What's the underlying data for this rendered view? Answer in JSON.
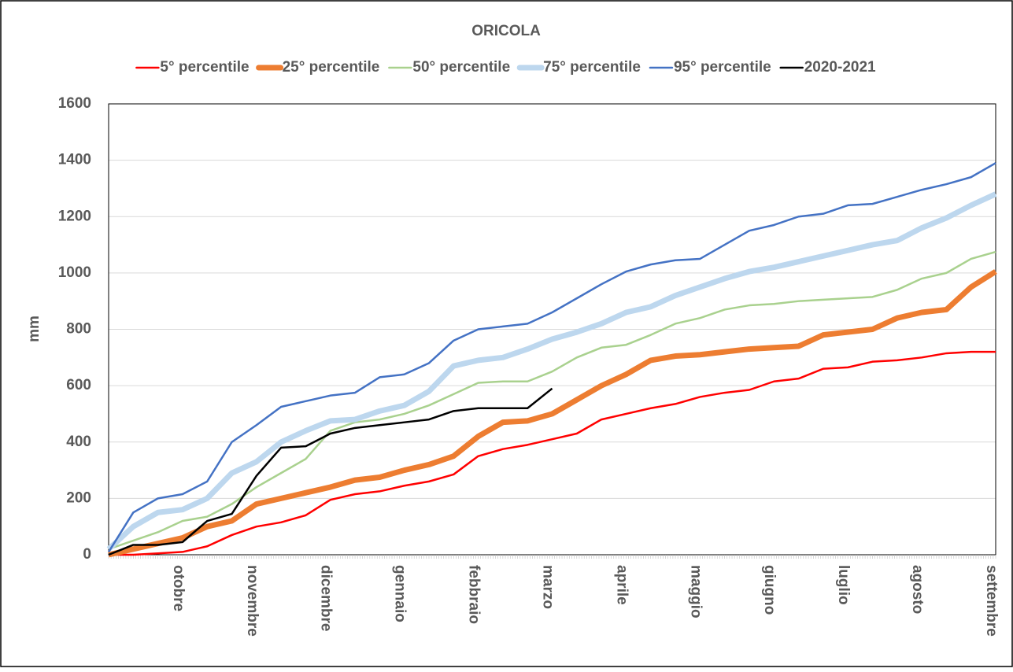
{
  "chart_data": {
    "type": "line",
    "title": "ORICOLA",
    "y_label": "mm",
    "categories": [
      null,
      null,
      null,
      "otobre",
      null,
      null,
      "novembre",
      null,
      null,
      "dicembre",
      null,
      null,
      "gennaio",
      null,
      null,
      "febbraio",
      null,
      null,
      "marzo",
      null,
      null,
      "aprile",
      null,
      null,
      "maggio",
      null,
      null,
      "giugno",
      null,
      null,
      "luglio",
      null,
      null,
      "agosto",
      null,
      null,
      "settembre"
    ],
    "ylim": [
      0,
      1600
    ],
    "yticks": [
      0,
      200,
      400,
      600,
      800,
      1000,
      1200,
      1400,
      1600
    ],
    "grid": true,
    "legend": "top",
    "series": [
      {
        "name": "5° percentile",
        "color": "#ff0000",
        "width": 2.5,
        "values": [
          0,
          0,
          5,
          10,
          30,
          70,
          100,
          115,
          140,
          195,
          215,
          225,
          245,
          260,
          285,
          350,
          375,
          390,
          410,
          430,
          480,
          500,
          520,
          535,
          560,
          575,
          585,
          615,
          625,
          660,
          665,
          685,
          690,
          700,
          715,
          720,
          720
        ]
      },
      {
        "name": "25° percentile",
        "color": "#ed7d31",
        "width": 7,
        "values": [
          0,
          20,
          40,
          60,
          100,
          120,
          180,
          200,
          220,
          240,
          265,
          275,
          300,
          320,
          350,
          420,
          470,
          475,
          500,
          550,
          600,
          640,
          690,
          705,
          710,
          720,
          730,
          735,
          740,
          780,
          790,
          800,
          840,
          860,
          870,
          950,
          1005
        ]
      },
      {
        "name": "50° percentile",
        "color": "#a9d18e",
        "width": 2.5,
        "values": [
          20,
          50,
          80,
          120,
          135,
          180,
          240,
          290,
          340,
          440,
          470,
          480,
          500,
          530,
          570,
          610,
          615,
          615,
          650,
          700,
          735,
          745,
          780,
          820,
          840,
          870,
          885,
          890,
          900,
          905,
          910,
          915,
          940,
          980,
          1000,
          1050,
          1075
        ]
      },
      {
        "name": "75° percentile",
        "color": "#bdd7ee",
        "width": 7,
        "values": [
          20,
          100,
          150,
          160,
          200,
          290,
          330,
          400,
          440,
          475,
          480,
          510,
          530,
          580,
          670,
          690,
          700,
          730,
          765,
          790,
          820,
          860,
          880,
          920,
          950,
          980,
          1005,
          1020,
          1040,
          1060,
          1080,
          1100,
          1115,
          1160,
          1195,
          1240,
          1280
        ]
      },
      {
        "name": "95° percentile",
        "color": "#4472c4",
        "width": 2.5,
        "values": [
          10,
          150,
          200,
          215,
          260,
          400,
          460,
          525,
          545,
          565,
          575,
          630,
          640,
          680,
          760,
          800,
          810,
          820,
          860,
          910,
          960,
          1005,
          1030,
          1045,
          1050,
          1100,
          1150,
          1170,
          1200,
          1210,
          1240,
          1245,
          1270,
          1295,
          1315,
          1340,
          1390
        ]
      },
      {
        "name": "2020-2021",
        "color": "#000000",
        "width": 2.5,
        "values": [
          0,
          35,
          35,
          45,
          120,
          145,
          280,
          380,
          385,
          430,
          450,
          460,
          470,
          480,
          510,
          520,
          520,
          520,
          590,
          null,
          null,
          null,
          null,
          null,
          null,
          null,
          null,
          null,
          null,
          null,
          null,
          null,
          null,
          null,
          null,
          null,
          null
        ]
      }
    ]
  }
}
